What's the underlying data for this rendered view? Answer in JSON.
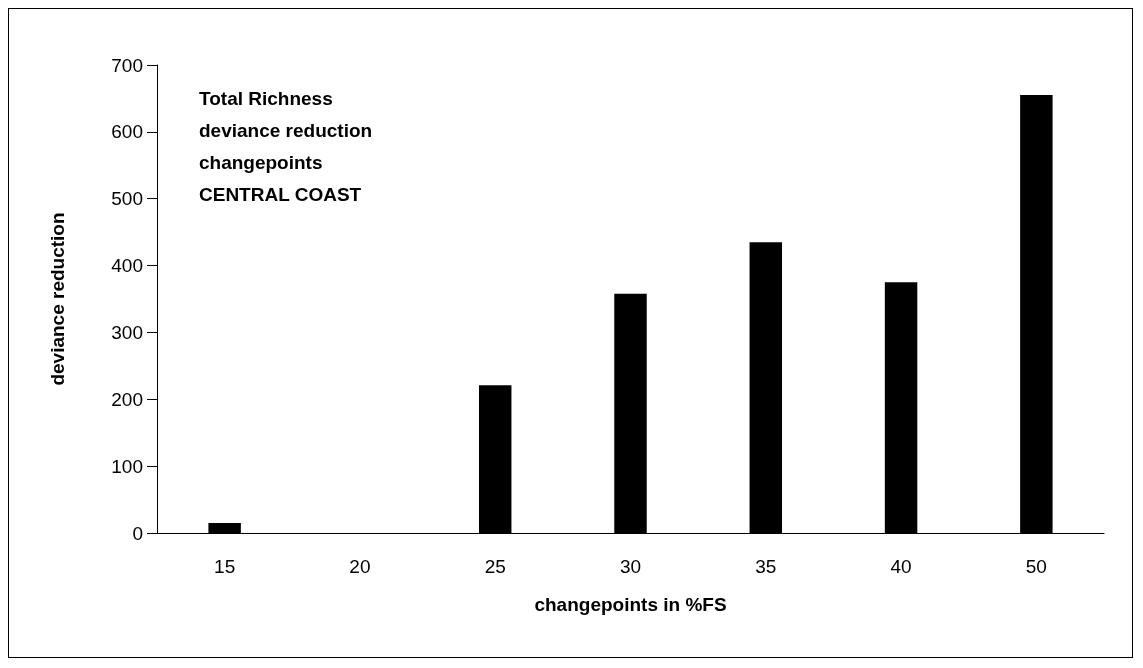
{
  "chart_data": {
    "type": "bar",
    "title": "Total Richness\ndeviance reduction\nchangepoints\nCENTRAL COAST",
    "xlabel": "changepoints in %FS",
    "ylabel": "deviance reduction",
    "categories": [
      "15",
      "20",
      "25",
      "30",
      "35",
      "40",
      "50"
    ],
    "values": [
      15,
      0,
      221,
      358,
      435,
      375,
      655
    ],
    "color": "#000000",
    "ylim": [
      0,
      700
    ],
    "yticks": [
      0,
      100,
      200,
      300,
      400,
      500,
      600,
      700
    ],
    "grid": false
  }
}
